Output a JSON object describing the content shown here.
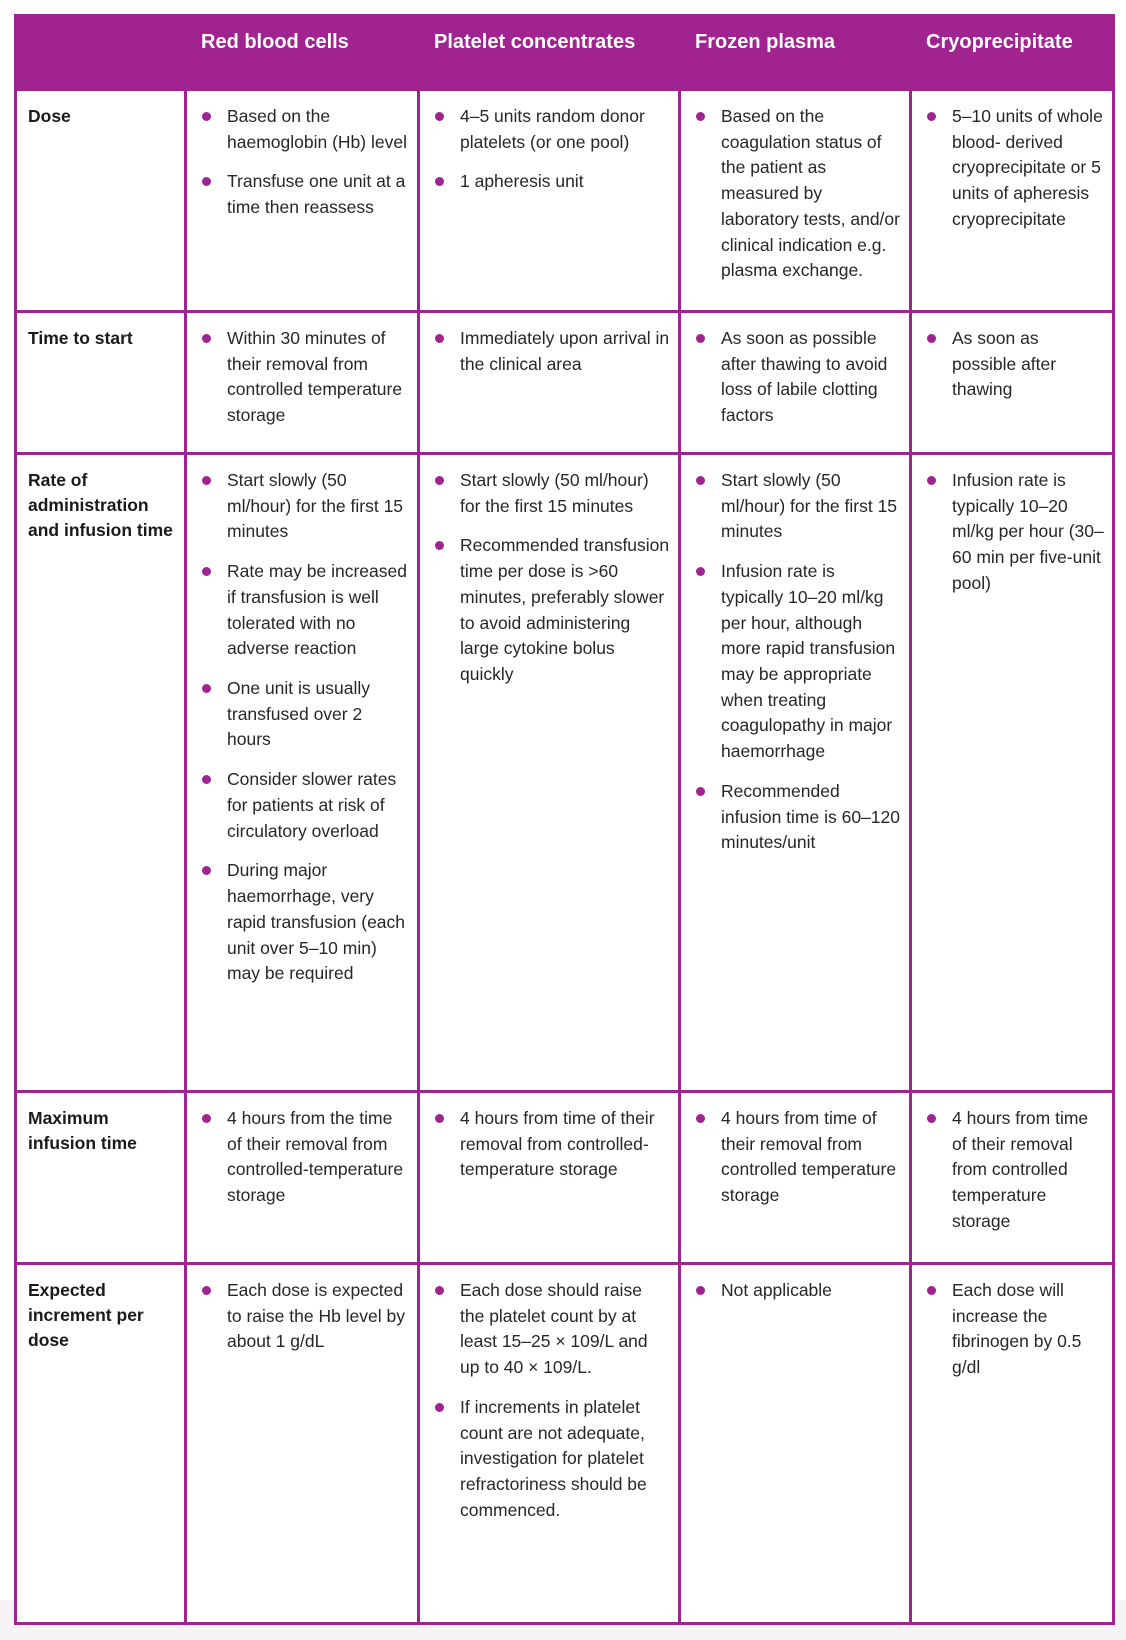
{
  "colors": {
    "accent_magenta": "#a12390",
    "header_text": "#ffffff",
    "body_text": "#2a2526"
  },
  "table": {
    "column_headers": [
      "Red blood cells",
      "Platelet concentrates",
      "Frozen plasma",
      "Cryoprecipitate"
    ],
    "rows": [
      {
        "label": "Dose",
        "cells": [
          {
            "bullets": [
              "Based on the haemoglobin (Hb) level",
              "Transfuse one unit at a time then reassess"
            ]
          },
          {
            "bullets": [
              "4–5 units random donor platelets (or one pool)",
              "1 apheresis unit"
            ]
          },
          {
            "bullets": [
              "Based on the coagulation status of the patient as measured by laboratory tests, and/or clinical indication e.g. plasma exchange."
            ]
          },
          {
            "bullets": [
              "5–10 units of whole blood- derived cryoprecipitate or 5 units of apheresis cryoprecipitate"
            ]
          }
        ]
      },
      {
        "label": "Time to start",
        "cells": [
          {
            "bullets": [
              "Within 30 minutes of their removal from controlled temperature storage"
            ]
          },
          {
            "bullets": [
              "Immediately upon arrival in the clinical area"
            ]
          },
          {
            "bullets": [
              "As soon as possible after thawing to avoid loss of labile clotting factors"
            ]
          },
          {
            "bullets": [
              "As soon as possible after thawing"
            ]
          }
        ]
      },
      {
        "label": "Rate of administration and infusion time",
        "cells": [
          {
            "bullets": [
              "Start slowly (50 ml/hour) for the first 15 minutes",
              "Rate may be increased if transfusion is well tolerated with no adverse reaction",
              "One unit is usually transfused over 2 hours",
              "Consider slower rates for patients at risk of circulatory overload",
              "During major haemorrhage, very rapid transfusion (each unit over 5–10 min) may be required"
            ]
          },
          {
            "bullets": [
              "Start slowly (50 ml/hour) for the first 15 minutes",
              "Recommended transfusion time per dose is >60 minutes, preferably slower to avoid administering large cytokine bolus quickly"
            ]
          },
          {
            "bullets": [
              "Start slowly (50 ml/hour) for the first 15 minutes",
              "Infusion rate is typically 10–20 ml/kg per hour, although more rapid transfusion may be appropriate when treating coagulopathy in major haemorrhage",
              "Recommended infusion time is 60–120 minutes/unit"
            ]
          },
          {
            "bullets": [
              "Infusion rate is typically 10–20 ml/kg per hour (30– 60 min per five-unit pool)"
            ]
          }
        ]
      },
      {
        "label": "Maximum infusion time",
        "cells": [
          {
            "bullets": [
              "4 hours from the time of their removal from controlled-temperature storage"
            ]
          },
          {
            "bullets": [
              "4 hours from time of their removal from controlled-temperature storage"
            ]
          },
          {
            "bullets": [
              "4 hours from time of their removal from controlled temperature storage"
            ]
          },
          {
            "bullets": [
              "4 hours from time of their removal from controlled temperature storage"
            ]
          }
        ]
      },
      {
        "label": "Expected increment per dose",
        "cells": [
          {
            "bullets": [
              "Each dose is expected to raise the Hb level by about 1 g/dL"
            ]
          },
          {
            "bullets": [
              "Each dose should raise the platelet count by at least 15–25 × 109/L and up to 40 × 109/L.",
              "If increments in platelet count are not adequate, investigation for platelet refractoriness should be commenced."
            ]
          },
          {
            "bullets": [
              "Not applicable"
            ]
          },
          {
            "bullets": [
              "Each dose will increase the fibrinogen by 0.5 g/dl"
            ]
          }
        ]
      }
    ]
  }
}
